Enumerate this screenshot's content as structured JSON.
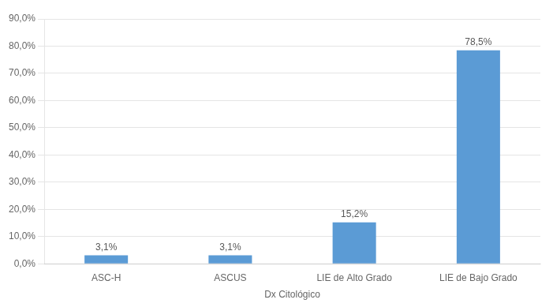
{
  "chart_data": {
    "type": "bar",
    "categories": [
      "ASC-H",
      "ASCUS",
      "LIE de Alto Grado",
      "LIE de Bajo Grado"
    ],
    "values": [
      3.1,
      3.1,
      15.2,
      78.5
    ],
    "value_labels": [
      "3,1%",
      "3,1%",
      "15,2%",
      "78,5%"
    ],
    "color": "#5b9bd5",
    "xlabel": "Dx Citológico",
    "ylim": [
      0,
      90
    ],
    "yticks": [
      {
        "value": 0,
        "label": "0,0%"
      },
      {
        "value": 10,
        "label": "10,0%"
      },
      {
        "value": 20,
        "label": "20,0%"
      },
      {
        "value": 30,
        "label": "30,0%"
      },
      {
        "value": 40,
        "label": "40,0%"
      },
      {
        "value": 50,
        "label": "50,0%"
      },
      {
        "value": 60,
        "label": "60,0%"
      },
      {
        "value": 70,
        "label": "70,0%"
      },
      {
        "value": 80,
        "label": "80,0%"
      },
      {
        "value": 90,
        "label": "90,0%"
      }
    ],
    "grid": true,
    "data_labels": true
  }
}
